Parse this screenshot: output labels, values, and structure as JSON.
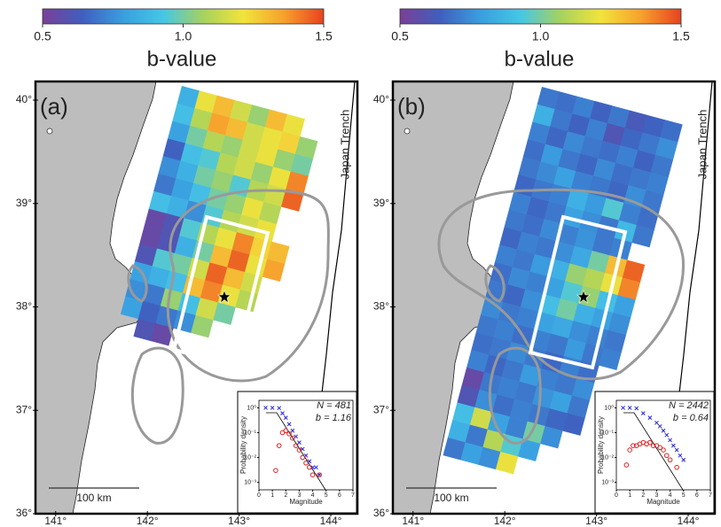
{
  "colorbar": {
    "colors": [
      "#7b3f98",
      "#3f5fbf",
      "#3a9ee0",
      "#46c6e6",
      "#a6d25e",
      "#f2e33c",
      "#f7a12e",
      "#e6431f"
    ],
    "lim": [
      0.5,
      1.5
    ],
    "ticks": [
      0.5,
      {
        "value": 1,
        "label": "1.0"
      },
      1.5
    ],
    "label": "b-value"
  },
  "panels": [
    {
      "label": "(a)",
      "trench_label": "Japan Trench",
      "scale_label": "100 km",
      "lat_lim": [
        36.0,
        40.18
      ],
      "lon_lim": [
        140.78,
        144.29
      ],
      "lat_ticks": [
        {
          "value": 40,
          "label": "40°"
        },
        {
          "value": 39,
          "label": "39°"
        },
        {
          "value": 38,
          "label": "38°"
        },
        {
          "value": 37,
          "label": "37°"
        },
        {
          "value": 36,
          "label": "36°"
        }
      ],
      "lon_ticks": [
        {
          "value": 141,
          "label": "141°"
        },
        {
          "value": 142,
          "label": "142°"
        },
        {
          "value": 143,
          "label": "143°"
        },
        {
          "value": 144,
          "label": "144°"
        }
      ],
      "grid_b_values": [
        [
          0.85,
          1.2,
          1.3,
          1.15,
          1.05,
          1.3,
          1.2,
          null
        ],
        [
          0.9,
          1.1,
          1.35,
          1.3,
          1.15,
          1.2,
          1.25,
          1.05
        ],
        [
          0.8,
          1.0,
          1.1,
          1.05,
          1.15,
          1.2,
          1.05,
          1.0
        ],
        [
          0.65,
          0.9,
          0.95,
          1.1,
          1.15,
          1.05,
          1.2,
          1.4
        ],
        [
          0.75,
          0.85,
          1.0,
          1.05,
          0.95,
          1.1,
          1.15,
          1.45
        ],
        [
          0.7,
          0.8,
          0.9,
          1.0,
          1.05,
          1.2,
          1.1,
          null
        ],
        [
          0.9,
          0.85,
          0.75,
          0.95,
          1.1,
          1.15,
          1.2,
          null
        ],
        [
          0.55,
          0.6,
          0.95,
          1.1,
          1.2,
          1.4,
          1.25,
          1.3
        ],
        [
          0.55,
          0.6,
          0.85,
          1.0,
          1.3,
          1.45,
          1.2,
          1.35
        ],
        [
          0.6,
          0.95,
          1.0,
          1.15,
          1.45,
          1.3,
          1.15,
          null
        ],
        [
          0.8,
          0.85,
          0.9,
          1.3,
          1.4,
          1.2,
          1.1,
          null
        ],
        [
          0.75,
          0.7,
          1.05,
          0.9,
          1.15,
          1.0,
          null,
          null
        ],
        [
          0.8,
          0.65,
          0.7,
          0.75,
          1.05,
          null,
          null,
          null
        ],
        [
          null,
          0.6,
          0.55,
          null,
          null,
          null,
          null,
          null
        ]
      ],
      "inset": {
        "n_text": "N = 481",
        "b_text": "b = 1.16",
        "ylabel": "Probability density",
        "xlabel": "Magnitude",
        "xlim": [
          0,
          7
        ],
        "xticks": [
          0,
          1,
          2,
          3,
          4,
          5,
          6,
          7
        ],
        "ylim": [
          0.0005,
          2
        ],
        "yticks": [
          {
            "value": 1,
            "label": "10⁰"
          },
          {
            "value": 0.1,
            "label": "10⁻¹"
          },
          {
            "value": 0.01,
            "label": "10⁻²"
          },
          {
            "value": 0.001,
            "label": "10⁻³"
          }
        ],
        "cumulative": {
          "color": "#2222dd",
          "x": [
            0.5,
            1,
            1.5,
            1.75,
            2,
            2.25,
            2.5,
            2.75,
            3,
            3.25,
            3.5,
            3.75,
            4,
            4.25,
            4.5
          ],
          "y": [
            1,
            1,
            0.98,
            0.6,
            0.4,
            0.22,
            0.12,
            0.07,
            0.04,
            0.022,
            0.012,
            0.007,
            0.004,
            0.004,
            0.002
          ]
        },
        "noncumulative": {
          "color": "#dd2222",
          "x": [
            1.25,
            1.5,
            1.75,
            2,
            2.25,
            2.5,
            2.75,
            3,
            3.25,
            3.5,
            3.75,
            4,
            4.5
          ],
          "y": [
            0.003,
            0.03,
            0.1,
            0.12,
            0.09,
            0.06,
            0.03,
            0.02,
            0.01,
            0.006,
            0.004,
            0.002,
            0.002
          ]
        }
      }
    },
    {
      "label": "(b)",
      "trench_label": "Japan Trench",
      "scale_label": "100 km",
      "lat_lim": [
        36.0,
        40.18
      ],
      "lon_lim": [
        140.78,
        144.29
      ],
      "lat_ticks": [
        {
          "value": 40,
          "label": "40°"
        },
        {
          "value": 39,
          "label": "39°"
        },
        {
          "value": 38,
          "label": "38°"
        },
        {
          "value": 37,
          "label": "37°"
        },
        {
          "value": 36,
          "label": "36°"
        }
      ],
      "lon_ticks": [
        {
          "value": 141,
          "label": "141°"
        },
        {
          "value": 142,
          "label": "142°"
        },
        {
          "value": 143,
          "label": "143°"
        },
        {
          "value": 144,
          "label": "144°"
        }
      ],
      "grid_b_values": [
        [
          0.7,
          0.68,
          0.72,
          0.65,
          0.7,
          0.62,
          0.65,
          0.68
        ],
        [
          0.85,
          0.7,
          0.65,
          0.72,
          0.6,
          0.66,
          0.7,
          0.75
        ],
        [
          0.72,
          0.66,
          0.74,
          0.7,
          0.68,
          0.72,
          0.65,
          0.7
        ],
        [
          0.68,
          0.78,
          0.7,
          0.66,
          0.74,
          0.68,
          0.7,
          0.72
        ],
        [
          0.7,
          0.74,
          0.8,
          0.72,
          0.7,
          0.66,
          0.75,
          0.7
        ],
        [
          0.66,
          0.7,
          0.72,
          0.85,
          0.78,
          0.95,
          0.72,
          0.68
        ],
        [
          0.72,
          0.66,
          0.7,
          0.8,
          0.75,
          0.7,
          0.88,
          0.7
        ],
        [
          0.7,
          0.68,
          0.74,
          0.72,
          0.76,
          0.7,
          0.72,
          null
        ],
        [
          0.66,
          0.72,
          0.7,
          0.75,
          0.82,
          1.0,
          1.3,
          1.45
        ],
        [
          0.72,
          0.7,
          0.78,
          0.85,
          1.05,
          1.1,
          1.2,
          1.4
        ],
        [
          0.68,
          0.74,
          0.72,
          0.8,
          0.95,
          1.05,
          0.9,
          0.8
        ],
        [
          0.7,
          0.66,
          0.75,
          0.9,
          1.0,
          0.85,
          0.8,
          0.75
        ],
        [
          0.74,
          0.7,
          0.72,
          0.8,
          0.82,
          0.75,
          0.72,
          0.7
        ],
        [
          0.7,
          0.72,
          0.68,
          0.72,
          0.7,
          0.78,
          0.7,
          0.72
        ],
        [
          0.68,
          0.7,
          0.74,
          0.7,
          0.66,
          0.72,
          0.68,
          null
        ],
        [
          0.72,
          0.66,
          0.7,
          0.78,
          0.72,
          0.7,
          0.75,
          null
        ],
        [
          0.55,
          0.7,
          0.72,
          0.7,
          0.76,
          0.8,
          0.7,
          null
        ],
        [
          0.6,
          0.75,
          0.68,
          0.72,
          0.7,
          0.66,
          0.65,
          null
        ],
        [
          0.9,
          1.15,
          0.8,
          0.72,
          1.0,
          0.75,
          null,
          null
        ],
        [
          0.85,
          0.7,
          1.1,
          0.95,
          0.8,
          null,
          null,
          null
        ],
        [
          0.7,
          0.8,
          0.75,
          1.2,
          null,
          null,
          null,
          null
        ]
      ],
      "inset": {
        "n_text": "N = 2442",
        "b_text": "b = 0.64",
        "ylabel": "Probability density",
        "xlabel": "Magnitude",
        "xlim": [
          0,
          7
        ],
        "xticks": [
          0,
          1,
          2,
          3,
          4,
          5,
          6,
          7
        ],
        "ylim": [
          0.0005,
          2
        ],
        "yticks": [
          {
            "value": 1,
            "label": "10⁰"
          },
          {
            "value": 0.1,
            "label": "10⁻¹"
          },
          {
            "value": 0.01,
            "label": "10⁻²"
          },
          {
            "value": 0.001,
            "label": "10⁻³"
          }
        ],
        "cumulative": {
          "color": "#2222dd",
          "x": [
            0.5,
            1,
            1.5,
            2,
            2.5,
            3,
            3.25,
            3.5,
            3.75,
            4,
            4.25,
            4.5,
            4.75,
            5
          ],
          "y": [
            1,
            1,
            0.95,
            0.6,
            0.4,
            0.25,
            0.18,
            0.12,
            0.08,
            0.05,
            0.03,
            0.02,
            0.012,
            0.008
          ]
        },
        "noncumulative": {
          "color": "#dd2222",
          "x": [
            0.75,
            1,
            1.25,
            1.5,
            1.75,
            2,
            2.25,
            2.5,
            2.75,
            3,
            3.25,
            3.5,
            3.75,
            4,
            4.5
          ],
          "y": [
            0.005,
            0.02,
            0.03,
            0.03,
            0.035,
            0.04,
            0.035,
            0.04,
            0.03,
            0.03,
            0.025,
            0.02,
            0.012,
            0.008,
            0.004
          ]
        }
      }
    }
  ]
}
